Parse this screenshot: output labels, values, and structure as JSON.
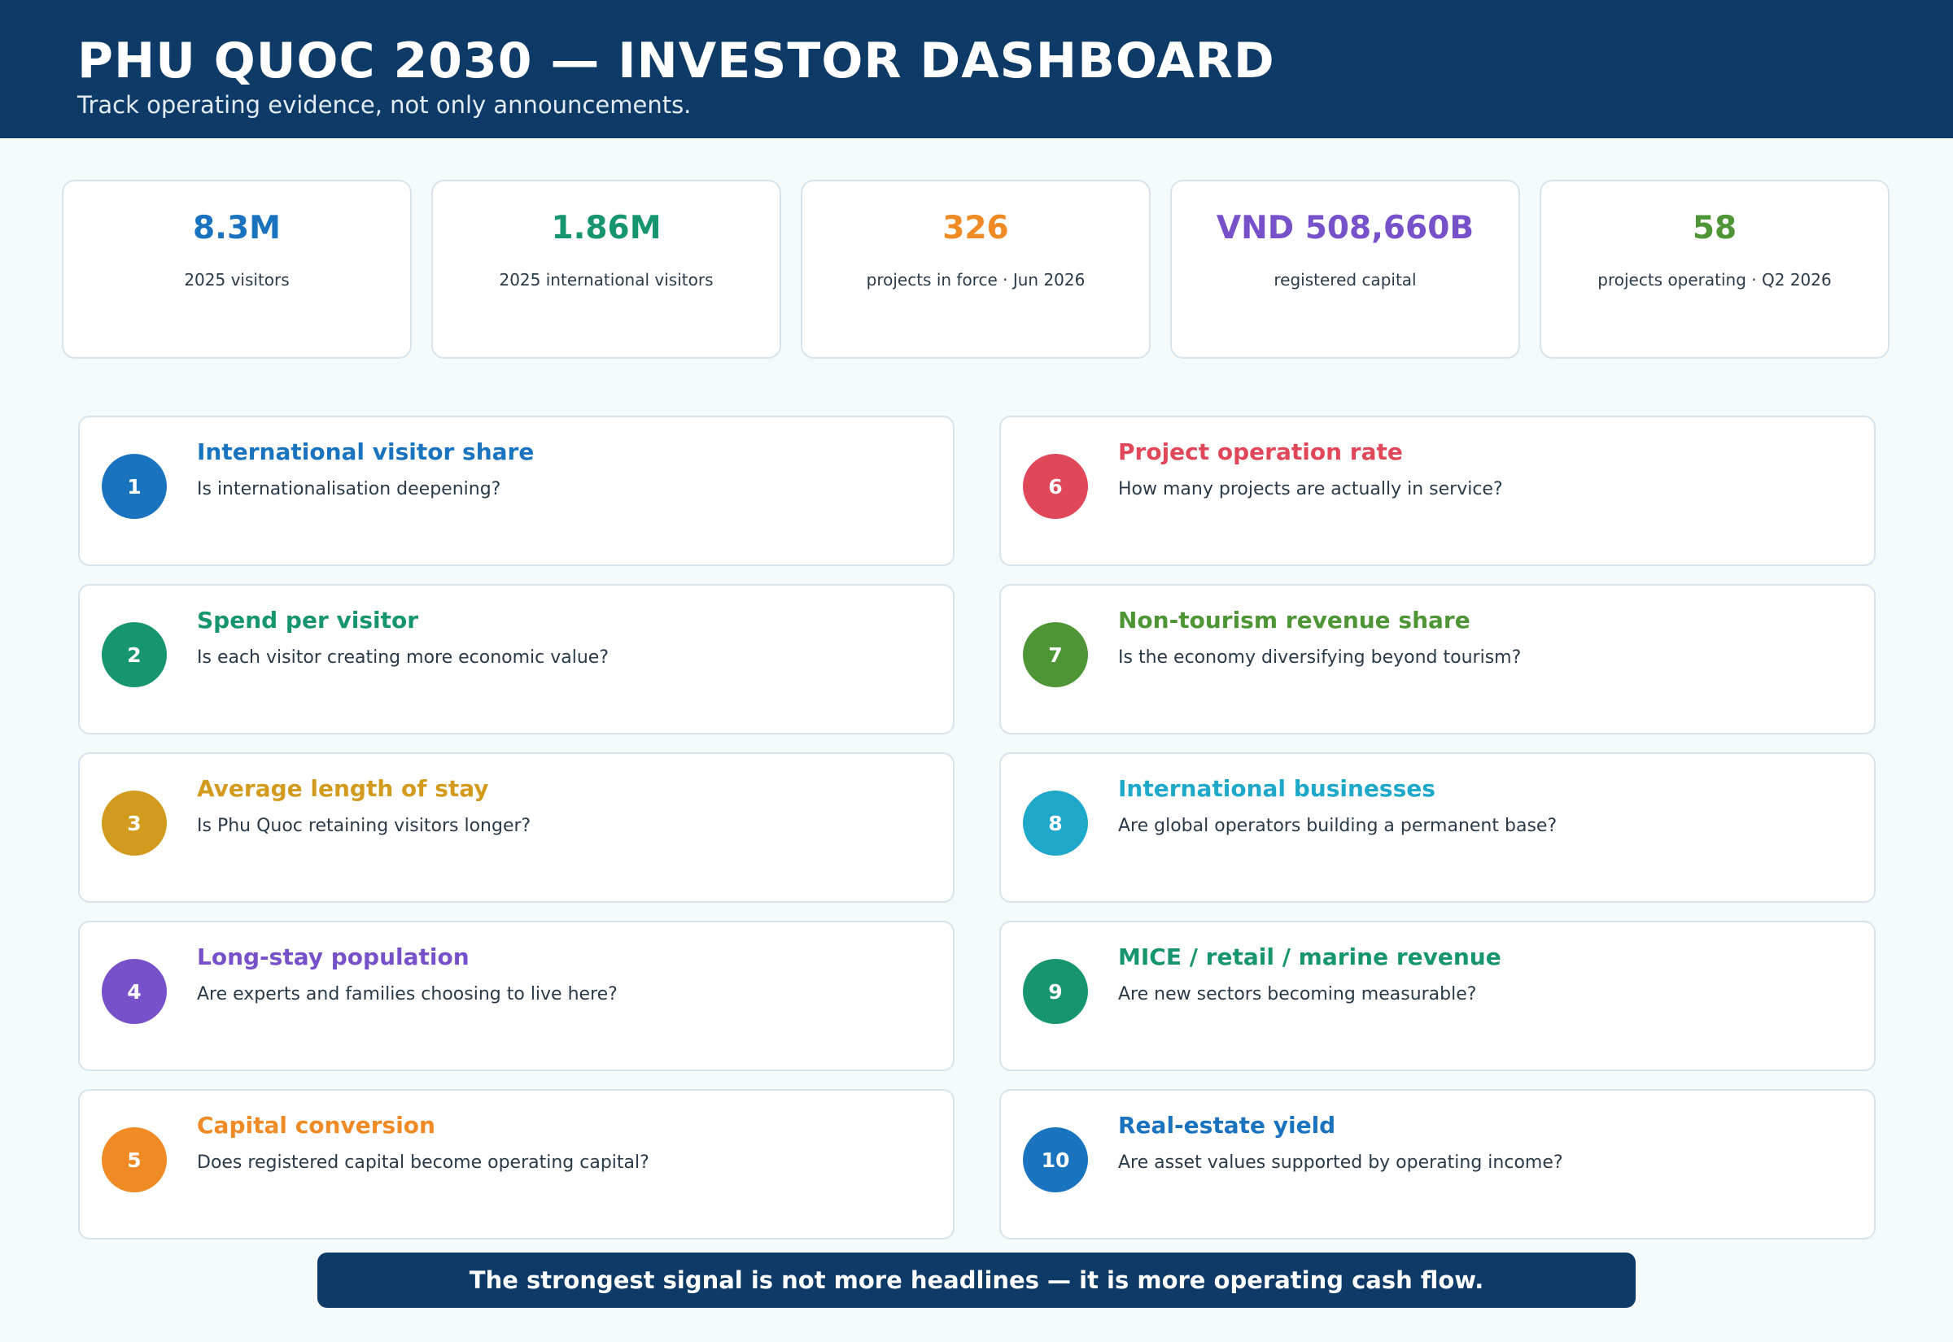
{
  "header": {
    "title": "PHU QUOC 2030 — INVESTOR DASHBOARD",
    "subtitle": "Track operating evidence, not only announcements."
  },
  "kpis": [
    {
      "value": "8.3M",
      "label": "2025 visitors",
      "color": "#1a73bf"
    },
    {
      "value": "1.86M",
      "label": "2025 international visitors",
      "color": "#16956f"
    },
    {
      "value": "326",
      "label": "projects in force · Jun 2026",
      "color": "#ef8a24"
    },
    {
      "value": "VND 508,660B",
      "label": "registered capital",
      "color": "#7751c9"
    },
    {
      "value": "58",
      "label": "projects operating · Q2 2026",
      "color": "#4d9535"
    }
  ],
  "indicators": [
    {
      "num": "1",
      "title": "International visitor share",
      "question": "Is internationalisation deepening?",
      "color": "#1a73bf"
    },
    {
      "num": "2",
      "title": "Spend per visitor",
      "question": "Is each visitor creating more economic value?",
      "color": "#16956f"
    },
    {
      "num": "3",
      "title": "Average length of stay",
      "question": "Is Phu Quoc retaining visitors longer?",
      "color": "#d39b1e"
    },
    {
      "num": "4",
      "title": "Long-stay population",
      "question": "Are experts and families choosing to live here?",
      "color": "#7751c9"
    },
    {
      "num": "5",
      "title": "Capital conversion",
      "question": "Does registered capital become operating capital?",
      "color": "#ef8a24"
    },
    {
      "num": "6",
      "title": "Project operation rate",
      "question": "How many projects are actually in service?",
      "color": "#e04758"
    },
    {
      "num": "7",
      "title": "Non-tourism revenue share",
      "question": "Is the economy diversifying beyond tourism?",
      "color": "#4d9535"
    },
    {
      "num": "8",
      "title": "International businesses",
      "question": "Are global operators building a permanent base?",
      "color": "#1ea8c9"
    },
    {
      "num": "9",
      "title": "MICE / retail / marine revenue",
      "question": "Are new sectors becoming measurable?",
      "color": "#16956f"
    },
    {
      "num": "10",
      "title": "Real-estate yield",
      "question": "Are asset values supported by operating income?",
      "color": "#1a73bf"
    }
  ],
  "footer": {
    "banner": "The strongest signal is not more headlines — it is more operating cash flow."
  }
}
